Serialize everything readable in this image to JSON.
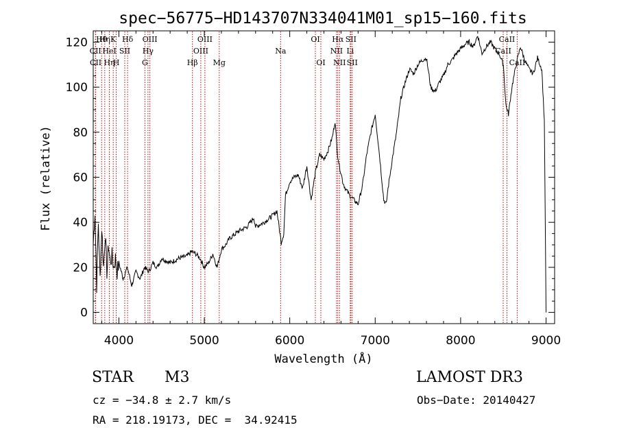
{
  "chart_data": {
    "type": "line",
    "title": "spec−56775−HD143707N334041M01_sp15−160.fits",
    "xlabel": "Wavelength (Å)",
    "ylabel": "Flux (relative)",
    "xlim": [
      3700,
      9100
    ],
    "ylim": [
      -5,
      125
    ],
    "xticks": [
      4000,
      5000,
      6000,
      7000,
      8000,
      9000
    ],
    "yticks": [
      0,
      20,
      40,
      60,
      80,
      100,
      120
    ],
    "grid": false,
    "legend": "none",
    "series": [
      {
        "name": "flux",
        "x": [
          3700,
          3720,
          3740,
          3760,
          3780,
          3800,
          3820,
          3840,
          3860,
          3880,
          3900,
          3920,
          3940,
          3960,
          3980,
          4000,
          4050,
          4100,
          4150,
          4200,
          4250,
          4300,
          4350,
          4400,
          4450,
          4500,
          4600,
          4700,
          4800,
          4850,
          4900,
          4950,
          5000,
          5050,
          5100,
          5150,
          5200,
          5250,
          5300,
          5400,
          5500,
          5580,
          5600,
          5700,
          5800,
          5850,
          5900,
          5930,
          5950,
          6000,
          6050,
          6100,
          6150,
          6200,
          6250,
          6300,
          6350,
          6400,
          6450,
          6500,
          6530,
          6560,
          6580,
          6600,
          6620,
          6650,
          6700,
          6750,
          6800,
          6850,
          6900,
          6950,
          7000,
          7050,
          7100,
          7130,
          7150,
          7200,
          7250,
          7300,
          7350,
          7400,
          7450,
          7500,
          7550,
          7600,
          7650,
          7700,
          7750,
          7800,
          7850,
          7900,
          7950,
          8000,
          8050,
          8100,
          8150,
          8200,
          8250,
          8300,
          8350,
          8400,
          8450,
          8500,
          8530,
          8560,
          8600,
          8650,
          8700,
          8750,
          8800,
          8850,
          8900,
          8950,
          8980,
          9000
        ],
        "y": [
          30,
          45,
          12,
          40,
          15,
          38,
          20,
          35,
          18,
          30,
          22,
          25,
          20,
          24,
          18,
          22,
          15,
          20,
          12,
          18,
          15,
          20,
          18,
          22,
          20,
          24,
          22,
          24,
          25,
          27,
          26,
          24,
          20,
          22,
          26,
          20,
          28,
          30,
          33,
          36,
          38,
          42,
          38,
          40,
          43,
          45,
          31,
          35,
          52,
          58,
          60,
          61,
          55,
          65,
          50,
          62,
          70,
          68,
          72,
          78,
          85,
          70,
          65,
          62,
          58,
          55,
          52,
          50,
          48,
          56,
          70,
          80,
          88,
          70,
          50,
          48,
          55,
          68,
          80,
          95,
          102,
          108,
          106,
          110,
          112,
          113,
          100,
          98,
          102,
          105,
          110,
          112,
          115,
          117,
          119,
          120,
          118,
          123,
          115,
          118,
          120,
          117,
          115,
          110,
          92,
          88,
          100,
          110,
          118,
          112,
          108,
          106,
          113,
          108,
          85,
          0
        ]
      }
    ],
    "lines": [
      {
        "label": "Hθ",
        "x": 3798,
        "row": 0
      },
      {
        "label": "CII",
        "x": 3726,
        "row": 1
      },
      {
        "label": "CII",
        "x": 3729,
        "row": 2
      },
      {
        "label": "Hη",
        "x": 3835,
        "row": 0
      },
      {
        "label": "HeI",
        "x": 3889,
        "row": 1
      },
      {
        "label": "Hη",
        "x": 3889,
        "row": 2
      },
      {
        "label": "K",
        "x": 3934,
        "row": 0
      },
      {
        "label": "H",
        "x": 3969,
        "row": 2
      },
      {
        "label": "SII",
        "x": 4069,
        "row": 1
      },
      {
        "label": "Hδ",
        "x": 4102,
        "row": 0
      },
      {
        "label": "G",
        "x": 4305,
        "row": 2
      },
      {
        "label": "Hγ",
        "x": 4341,
        "row": 1
      },
      {
        "label": "OIII",
        "x": 4363,
        "row": 0
      },
      {
        "label": "Hβ",
        "x": 4861,
        "row": 2
      },
      {
        "label": "OIII",
        "x": 4959,
        "row": 1
      },
      {
        "label": "OIII",
        "x": 5007,
        "row": 0
      },
      {
        "label": "Mg",
        "x": 5175,
        "row": 2
      },
      {
        "label": "Na",
        "x": 5893,
        "row": 1
      },
      {
        "label": "OI",
        "x": 6300,
        "row": 0
      },
      {
        "label": "OI",
        "x": 6364,
        "row": 2
      },
      {
        "label": "NII",
        "x": 6548,
        "row": 1
      },
      {
        "label": "Hα",
        "x": 6563,
        "row": 0
      },
      {
        "label": "NII",
        "x": 6583,
        "row": 2
      },
      {
        "label": "Li",
        "x": 6708,
        "row": 1
      },
      {
        "label": "SII",
        "x": 6716,
        "row": 0
      },
      {
        "label": "SII",
        "x": 6731,
        "row": 2
      },
      {
        "label": "CaII",
        "x": 8498,
        "row": 1
      },
      {
        "label": "CaII",
        "x": 8542,
        "row": 0
      },
      {
        "label": "CaII",
        "x": 8662,
        "row": 2
      }
    ]
  },
  "info": {
    "object_class": "STAR",
    "subclass": "M3",
    "survey": "LAMOST DR3",
    "cz": "cz = −34.8 ± 2.7 km/s",
    "obs_date": "Obs−Date: 20140427",
    "coords": "RA = 218.19173, DEC =  34.92415"
  }
}
